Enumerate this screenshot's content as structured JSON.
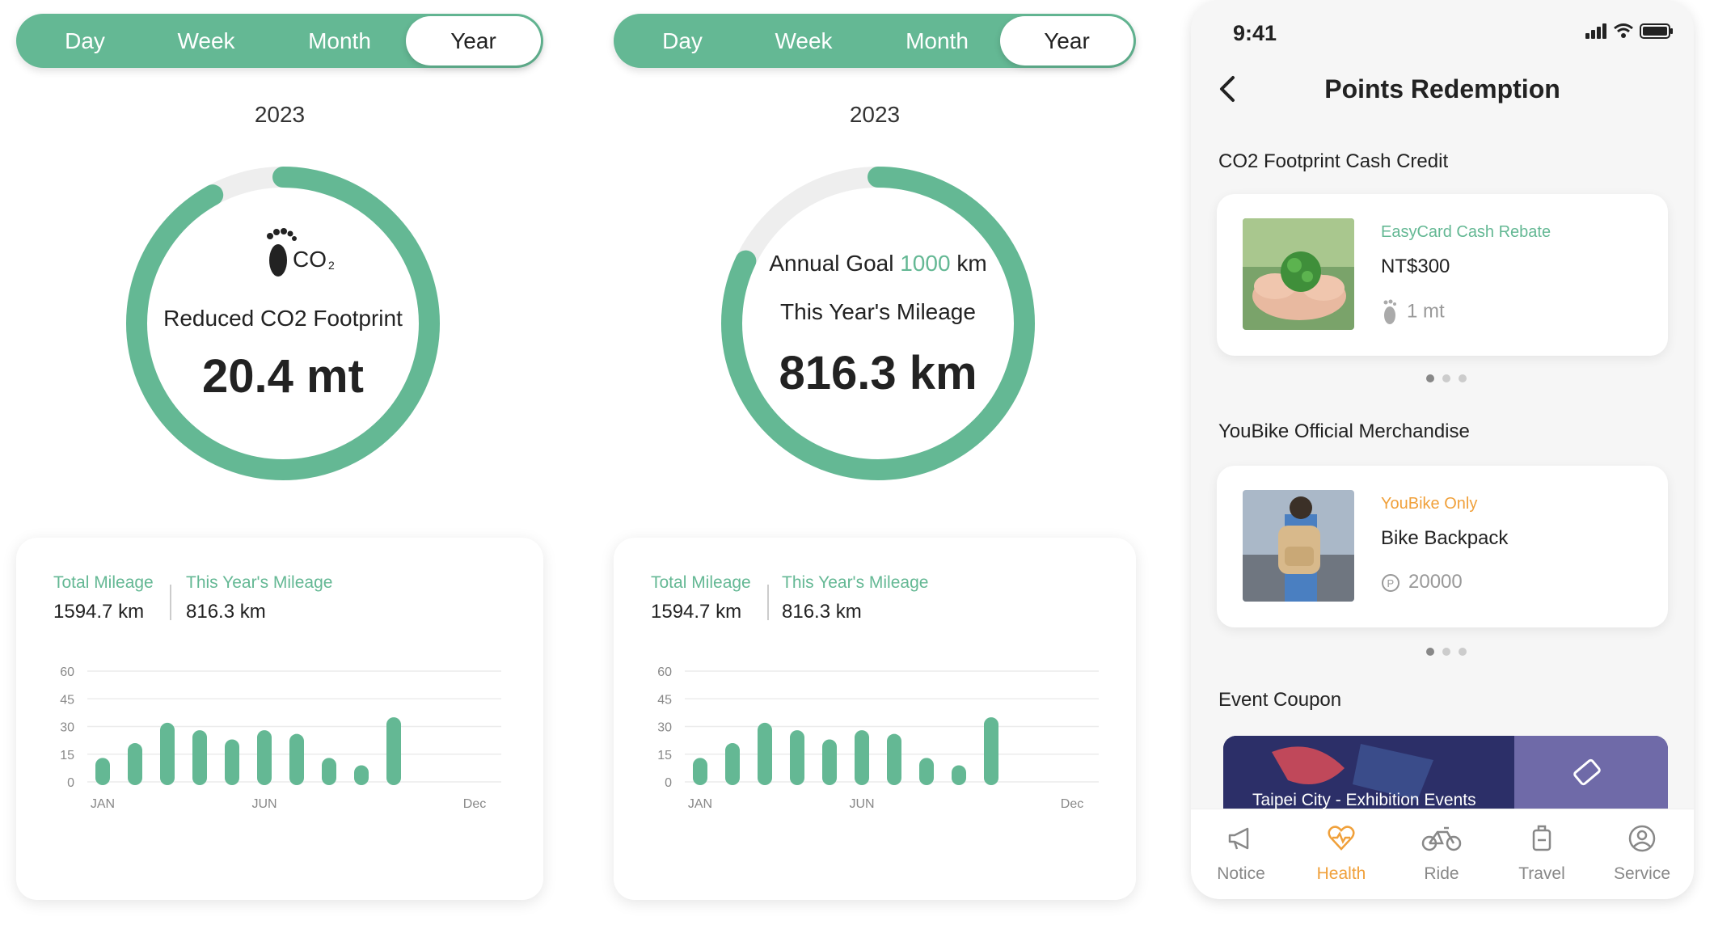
{
  "segmented": [
    "Day",
    "Week",
    "Month",
    "Year"
  ],
  "segmented_active": "Year",
  "panel1": {
    "year": "2023",
    "ring_progress": 0.92,
    "co2_icon_text": "CO",
    "co2_icon_sub": "2",
    "label": "Reduced CO2 Footprint",
    "value": "20.4 mt"
  },
  "panel2": {
    "year": "2023",
    "ring_progress": 0.82,
    "goal_prefix": "Annual Goal",
    "goal_value": "1000",
    "goal_unit": "km",
    "label": "This Year's Mileage",
    "value": "816.3 km"
  },
  "stats": {
    "total_label": "Total Mileage",
    "total_value": "1594.7 km",
    "year_label": "This Year's Mileage",
    "year_value": "816.3 km"
  },
  "chart_data": {
    "type": "bar",
    "categories": [
      "JAN",
      "FEB",
      "MAR",
      "APR",
      "MAY",
      "JUN",
      "JUL",
      "AUG",
      "SEP",
      "OCT",
      "NOV",
      "Dec"
    ],
    "values": [
      13,
      21,
      32,
      28,
      23,
      28,
      26,
      13,
      9,
      35,
      0,
      0
    ],
    "x_tick_labels": [
      "JAN",
      "JUN",
      "Dec"
    ],
    "y_ticks": [
      0,
      15,
      30,
      45,
      60
    ],
    "ylim": [
      0,
      60
    ],
    "grid": true,
    "color": "#64b894"
  },
  "phone": {
    "time": "9:41",
    "title": "Points Redemption",
    "section1": "CO2 Footprint Cash Credit",
    "card1": {
      "tag": "EasyCard Cash Rebate",
      "name": "NT$300",
      "meta": "1 mt",
      "tag_color": "#64b894"
    },
    "section2": "YouBike Official Merchandise",
    "card2": {
      "tag": "YouBike Only",
      "name": "Bike Backpack",
      "meta": "20000",
      "tag_color": "#f0a03a"
    },
    "section3": "Event Coupon",
    "banner": "Taipei City - Exhibition Events",
    "tabs": [
      {
        "label": "Notice",
        "icon": "megaphone-icon"
      },
      {
        "label": "Health",
        "icon": "heart-icon"
      },
      {
        "label": "Ride",
        "icon": "bike-icon"
      },
      {
        "label": "Travel",
        "icon": "luggage-icon"
      },
      {
        "label": "Service",
        "icon": "user-circle-icon"
      }
    ],
    "active_tab": "Health"
  },
  "colors": {
    "accent": "#64b894",
    "orange": "#f0a03a",
    "track": "#eeeeee"
  }
}
